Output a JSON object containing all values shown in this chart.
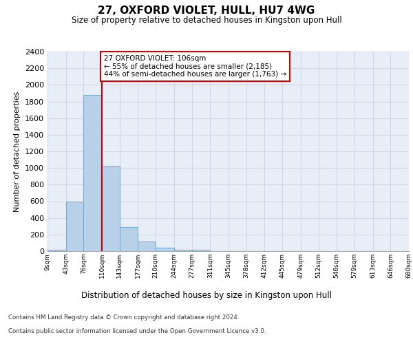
{
  "title": "27, OXFORD VIOLET, HULL, HU7 4WG",
  "subtitle": "Size of property relative to detached houses in Kingston upon Hull",
  "xlabel_bottom": "Distribution of detached houses by size in Kingston upon Hull",
  "ylabel": "Number of detached properties",
  "footer_line1": "Contains HM Land Registry data © Crown copyright and database right 2024.",
  "footer_line2": "Contains public sector information licensed under the Open Government Licence v3.0.",
  "annotation_line1": "27 OXFORD VIOLET: 106sqm",
  "annotation_line2": "← 55% of detached houses are smaller (2,185)",
  "annotation_line3": "44% of semi-detached houses are larger (1,763) →",
  "property_size": 106,
  "bin_edges": [
    9,
    43,
    76,
    110,
    143,
    177,
    210,
    244,
    277,
    311,
    345,
    378,
    412,
    445,
    479,
    512,
    546,
    579,
    613,
    646,
    680
  ],
  "bar_heights": [
    15,
    600,
    1880,
    1030,
    290,
    115,
    40,
    20,
    15,
    0,
    0,
    0,
    0,
    0,
    0,
    0,
    0,
    0,
    0,
    0
  ],
  "bar_color": "#b8d0e8",
  "bar_edge_color": "#6aaad4",
  "vline_color": "#cc0000",
  "vline_x": 110,
  "annotation_box_color": "#cc0000",
  "ylim": [
    0,
    2400
  ],
  "yticks": [
    0,
    200,
    400,
    600,
    800,
    1000,
    1200,
    1400,
    1600,
    1800,
    2000,
    2200,
    2400
  ],
  "grid_color": "#d0d8e8",
  "background_color": "#e8eef8",
  "tick_labels": [
    "9sqm",
    "43sqm",
    "76sqm",
    "110sqm",
    "143sqm",
    "177sqm",
    "210sqm",
    "244sqm",
    "277sqm",
    "311sqm",
    "345sqm",
    "378sqm",
    "412sqm",
    "445sqm",
    "479sqm",
    "512sqm",
    "546sqm",
    "579sqm",
    "613sqm",
    "646sqm",
    "680sqm"
  ]
}
